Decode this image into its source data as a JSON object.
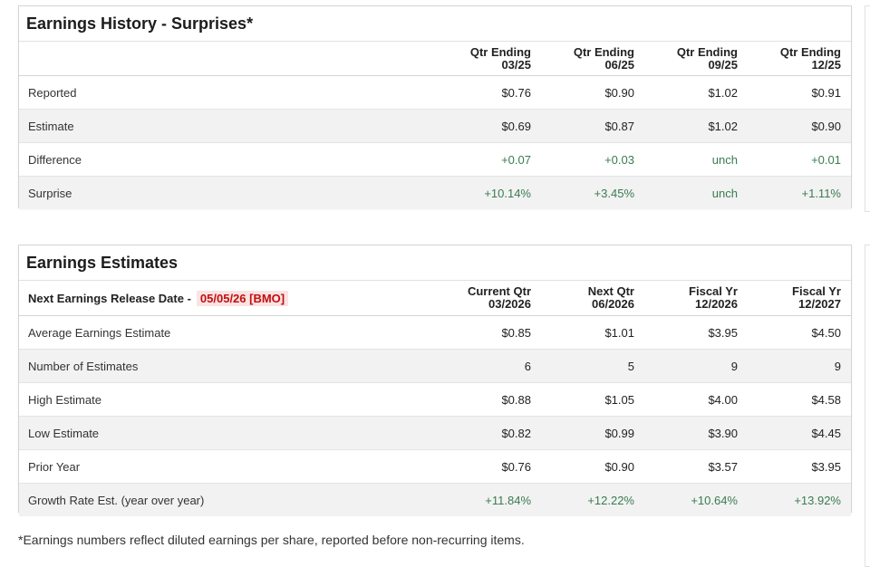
{
  "surprises": {
    "title": "Earnings History - Surprises*",
    "columns": [
      {
        "line1": "Qtr Ending",
        "line2": "03/25"
      },
      {
        "line1": "Qtr Ending",
        "line2": "06/25"
      },
      {
        "line1": "Qtr Ending",
        "line2": "09/25"
      },
      {
        "line1": "Qtr Ending",
        "line2": "12/25"
      }
    ],
    "rows": [
      {
        "label": "Reported",
        "values": [
          "$0.76",
          "$0.90",
          "$1.02",
          "$0.91"
        ]
      },
      {
        "label": "Estimate",
        "values": [
          "$0.69",
          "$0.87",
          "$1.02",
          "$0.90"
        ]
      },
      {
        "label": "Difference",
        "values": [
          "+0.07",
          "+0.03",
          "unch",
          "+0.01"
        ]
      },
      {
        "label": "Surprise",
        "values": [
          "+10.14%",
          "+3.45%",
          "unch",
          "+1.11%"
        ]
      }
    ]
  },
  "estimates": {
    "title": "Earnings Estimates",
    "next_release_label": "Next Earnings Release Date -",
    "next_release_date": "05/05/26 [BMO]",
    "columns": [
      {
        "line1": "Current Qtr",
        "line2": "03/2026"
      },
      {
        "line1": "Next Qtr",
        "line2": "06/2026"
      },
      {
        "line1": "Fiscal Yr",
        "line2": "12/2026"
      },
      {
        "line1": "Fiscal Yr",
        "line2": "12/2027"
      }
    ],
    "rows": [
      {
        "label": "Average Earnings Estimate",
        "values": [
          "$0.85",
          "$1.01",
          "$3.95",
          "$4.50"
        ]
      },
      {
        "label": "Number of Estimates",
        "values": [
          "6",
          "5",
          "9",
          "9"
        ]
      },
      {
        "label": "High Estimate",
        "values": [
          "$0.88",
          "$1.05",
          "$4.00",
          "$4.58"
        ]
      },
      {
        "label": "Low Estimate",
        "values": [
          "$0.82",
          "$0.99",
          "$3.90",
          "$4.45"
        ]
      },
      {
        "label": "Prior Year",
        "values": [
          "$0.76",
          "$0.90",
          "$3.57",
          "$3.95"
        ]
      },
      {
        "label": "Growth Rate Est. (year over year)",
        "values": [
          "+11.84%",
          "+12.22%",
          "+10.64%",
          "+13.92%"
        ]
      }
    ]
  },
  "footnote": "*Earnings numbers reflect diluted earnings per share, reported before non-recurring items.",
  "colors": {
    "positive": "#3a7b50",
    "date_highlight_bg": "#fbe3e3",
    "date_highlight_text": "#c20e0e",
    "alt_row": "#f2f2f2"
  }
}
